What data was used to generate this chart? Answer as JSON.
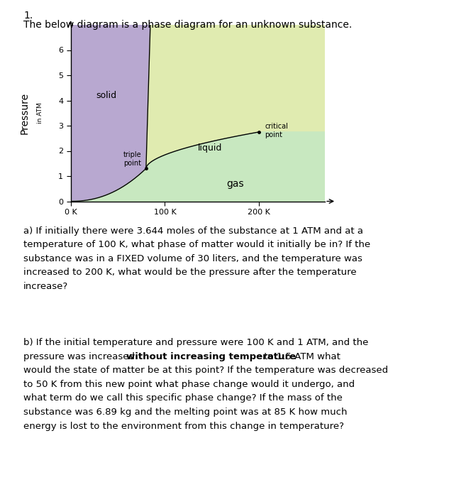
{
  "title_num": "1.",
  "title_text": "The below diagram is a phase diagram for an unknown substance.",
  "fig_width": 6.64,
  "fig_height": 7.0,
  "xlim": [
    0,
    270
  ],
  "ylim": [
    0,
    7.0
  ],
  "xticks": [
    0,
    100,
    200
  ],
  "xticklabels": [
    "0 K",
    "100 K",
    "200 K"
  ],
  "yticks": [
    0,
    1,
    2,
    3,
    4,
    5,
    6
  ],
  "solid_color": "#b8a8d0",
  "liquid_color": "#e0ebb0",
  "gas_color": "#c8e8c0",
  "triple_point_x": 80,
  "triple_point_y": 1.3,
  "critical_point_x": 200,
  "critical_point_y": 2.75,
  "background_color": "#ffffff",
  "question_a_line1": "a) If initially there were 3.644 moles of the substance at 1 ATM and at a",
  "question_a_line2": "temperature of 100 K, what phase of matter would it initially be in? If the",
  "question_a_line3": "substance was in a FIXED volume of 30 liters, and the temperature was",
  "question_a_line4": "increased to 200 K, what would be the pressure after the temperature",
  "question_a_line5": "increase?",
  "question_b_line1": "b) If the initial temperature and pressure were 100 K and 1 ATM, and the",
  "question_b_line2_pre": "pressure was increased ",
  "question_b_line2_bold": "without increasing temperature",
  "question_b_line2_post": " to 1.5 ATM what",
  "question_b_line3": "would the state of matter be at this point? If the temperature was decreased",
  "question_b_line4": "to 50 K from this new point what phase change would it undergo, and",
  "question_b_line5": "what term do we call this specific phase change? If the mass of the",
  "question_b_line6": "substance was 6.89 kg and the melting point was at 85 K how much",
  "question_b_line7": "energy is lost to the environment from this change in temperature?"
}
